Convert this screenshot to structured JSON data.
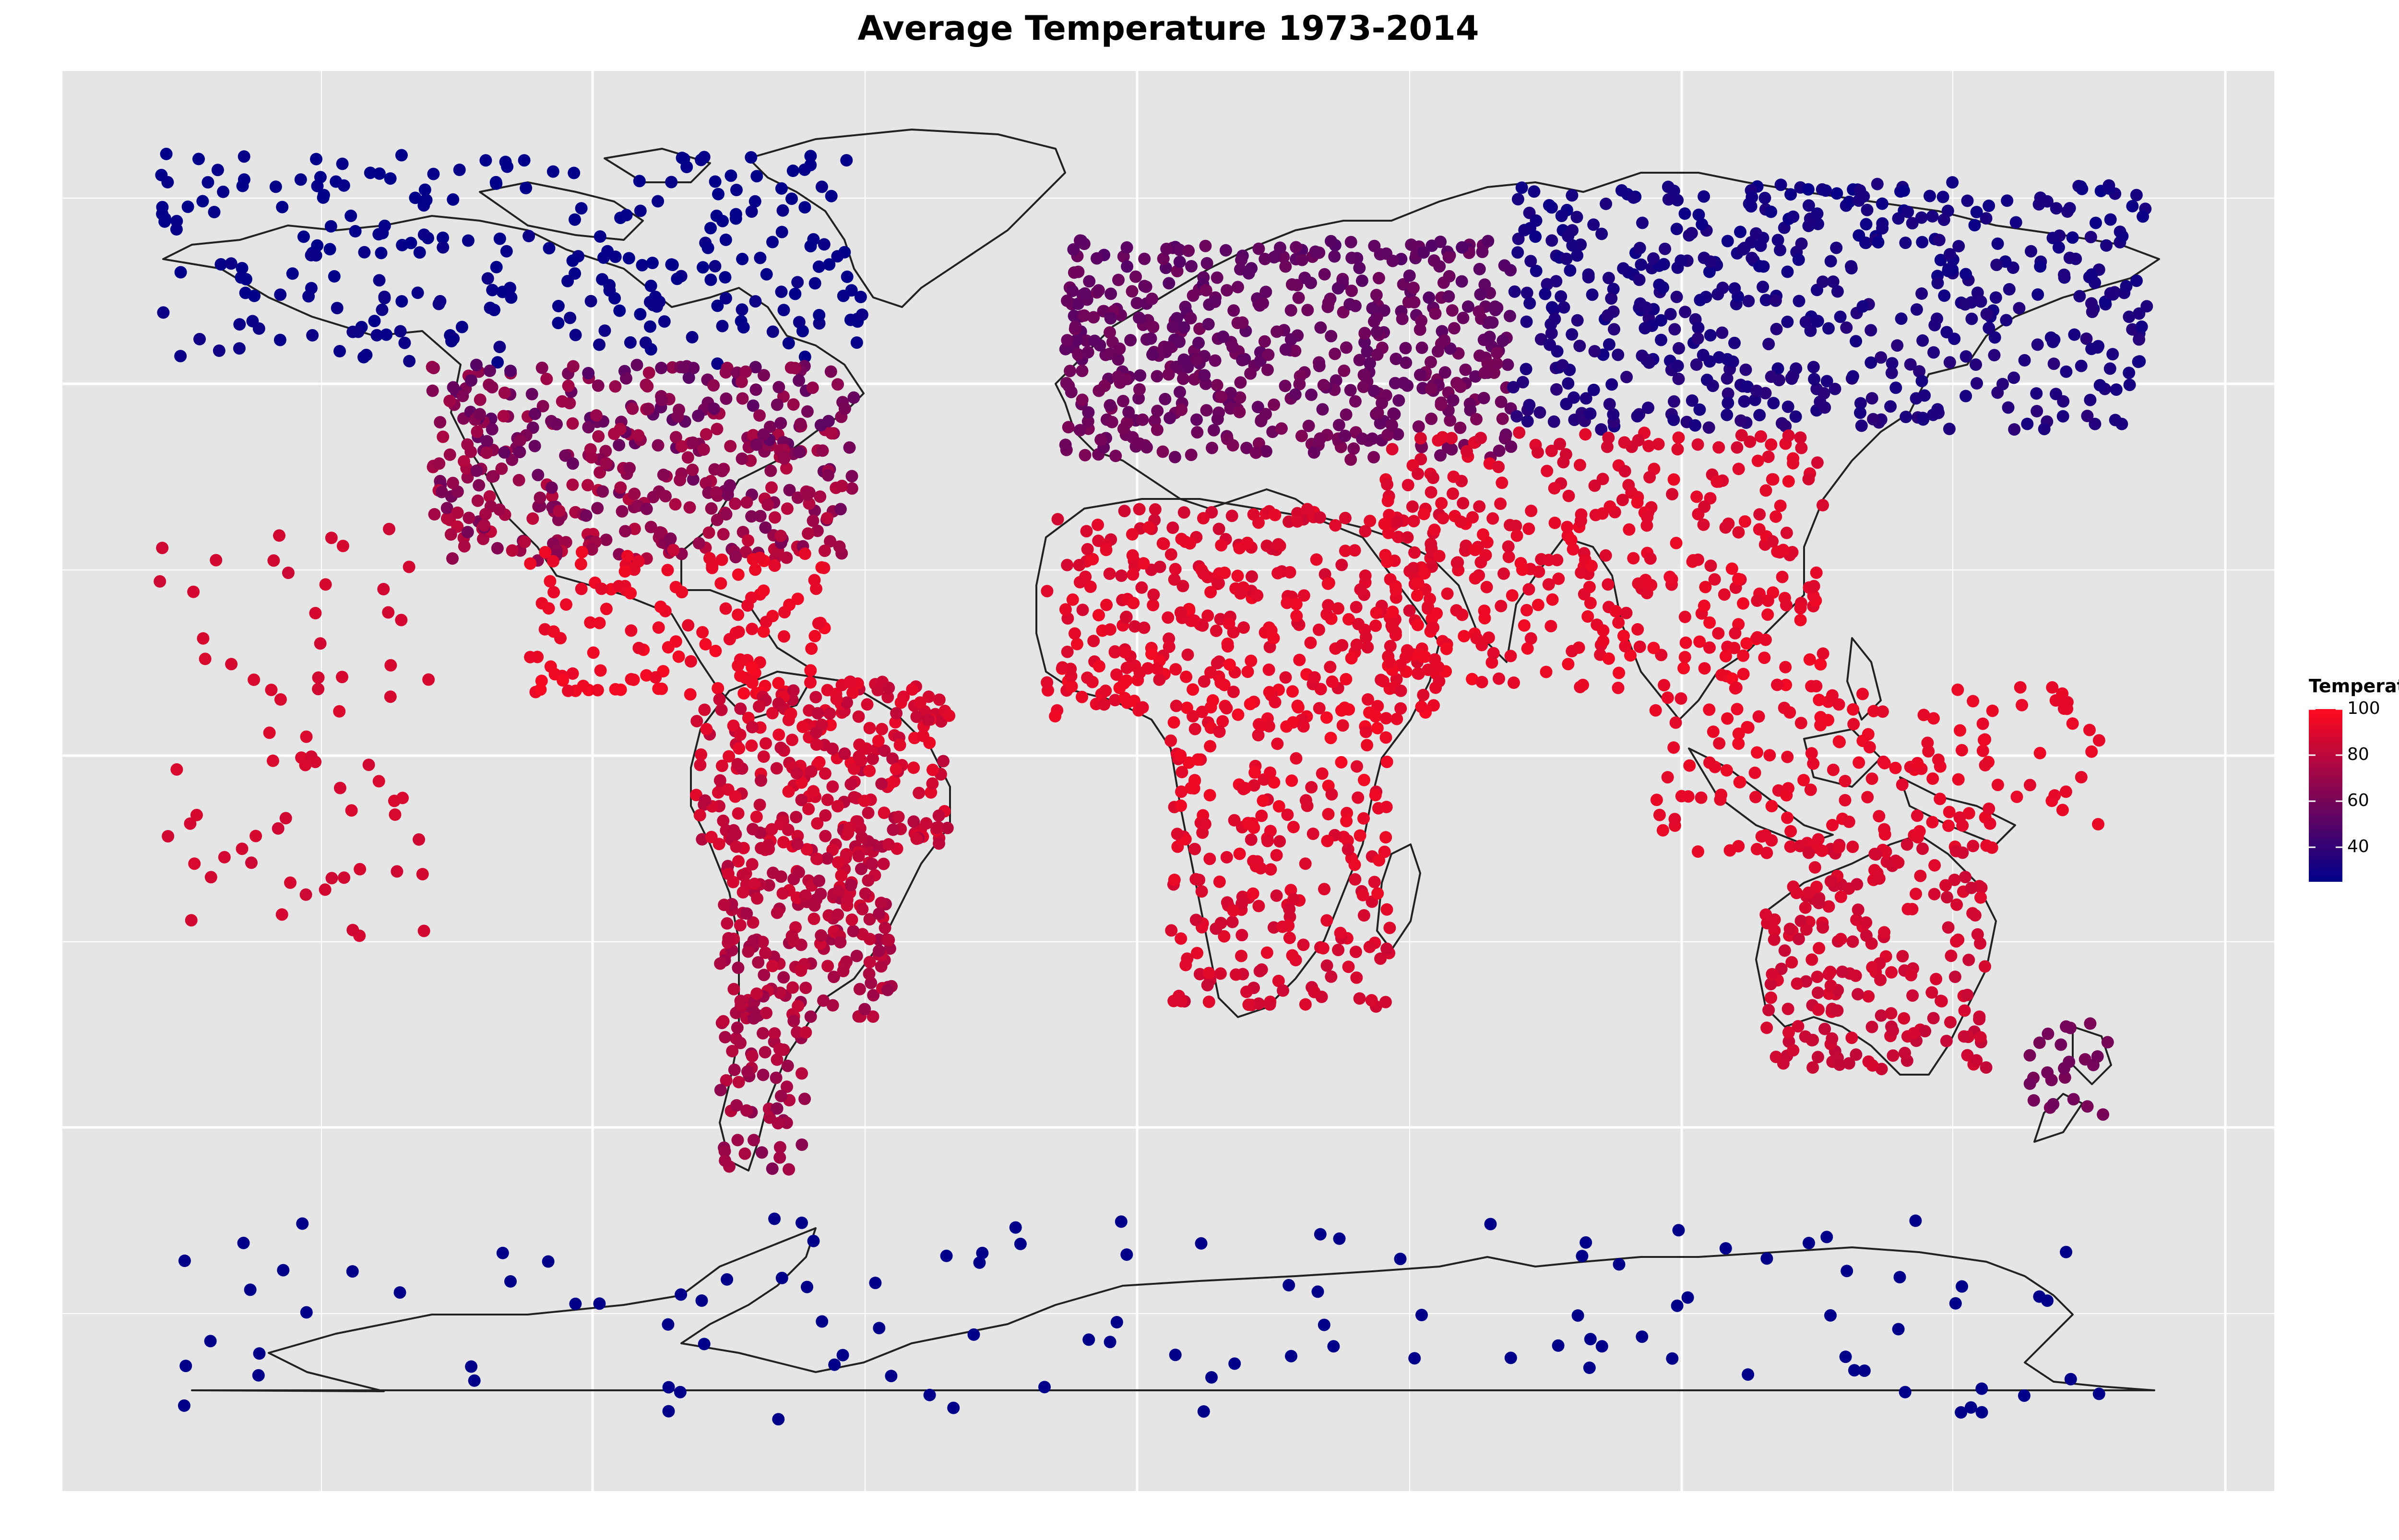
{
  "title": "Average Temperature 1973-2014",
  "legend": {
    "title": "Temperature",
    "ticks": [
      "100",
      "80",
      "60",
      "40"
    ],
    "tick_values": [
      100,
      80,
      60,
      40
    ],
    "range": [
      25,
      100
    ],
    "color_low": "#00008b",
    "color_high": "#ff0a1e"
  },
  "map": {
    "background": "#e5e5e5",
    "grid": true,
    "grid_color": "#ffffff",
    "coastline_color": "#222222",
    "point_color_scale": "temperature",
    "regions": [
      {
        "name": "North America",
        "temp_range": [
          30,
          95
        ]
      },
      {
        "name": "Greenland & Arctic Canada",
        "temp_range": [
          22,
          35
        ]
      },
      {
        "name": "Central America & Caribbean",
        "temp_range": [
          85,
          98
        ]
      },
      {
        "name": "South America",
        "temp_range": [
          55,
          95
        ]
      },
      {
        "name": "Europe",
        "temp_range": [
          45,
          70
        ]
      },
      {
        "name": "Northern Asia",
        "temp_range": [
          25,
          45
        ]
      },
      {
        "name": "Africa",
        "temp_range": [
          75,
          98
        ]
      },
      {
        "name": "Southern Asia",
        "temp_range": [
          80,
          98
        ]
      },
      {
        "name": "Maritime Southeast Asia",
        "temp_range": [
          85,
          95
        ]
      },
      {
        "name": "Australia",
        "temp_range": [
          75,
          95
        ]
      },
      {
        "name": "New Zealand",
        "temp_range": [
          55,
          65
        ]
      },
      {
        "name": "Pacific Islands",
        "temp_range": [
          80,
          90
        ]
      },
      {
        "name": "Antarctica",
        "temp_range": [
          22,
          28
        ]
      }
    ]
  }
}
